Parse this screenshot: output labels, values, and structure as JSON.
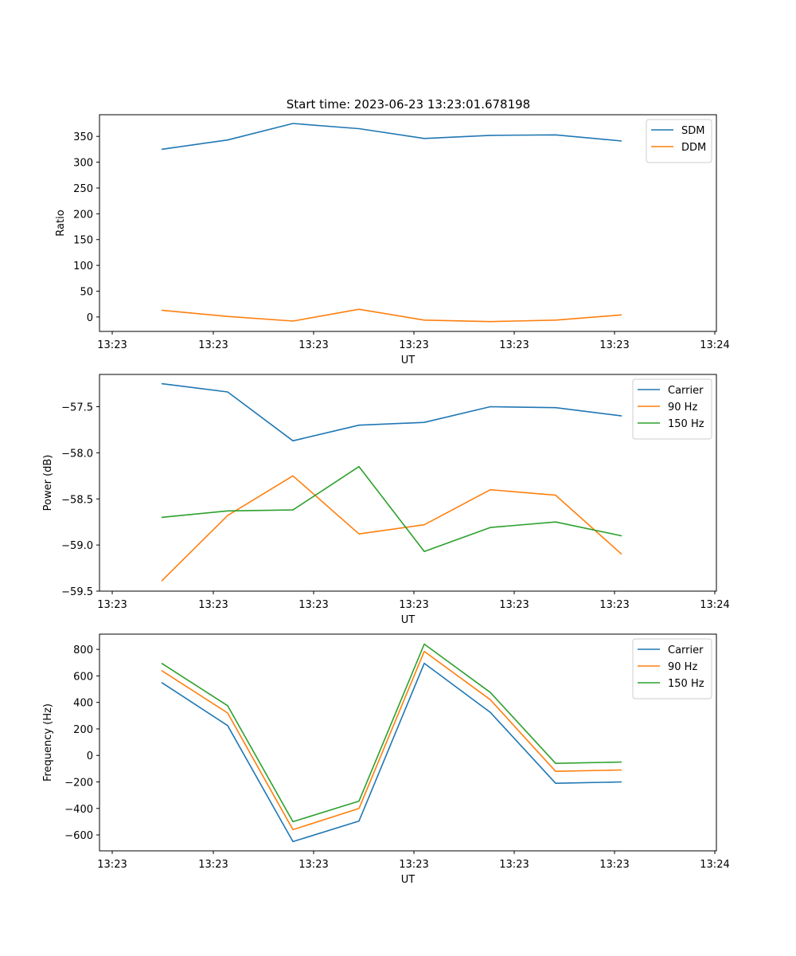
{
  "figure_title": "Start time: 2023-06-23 13:23:01.678198",
  "colors": {
    "blue": "#1f77b4",
    "orange": "#ff7f0e",
    "green": "#2ca02c"
  },
  "chart_data": [
    {
      "type": "line",
      "ylabel": "Ratio",
      "xlabel": "UT",
      "xticks": [
        "13:23",
        "13:23",
        "13:23",
        "13:23",
        "13:23",
        "13:23",
        "13:24"
      ],
      "yticks": [
        0,
        50,
        100,
        150,
        200,
        250,
        300,
        350
      ],
      "ylim": [
        -28,
        392
      ],
      "grid": false,
      "legend": "top-right",
      "series": [
        {
          "name": "SDM",
          "color": "#1f77b4",
          "values": [
            325,
            343,
            375,
            365,
            346,
            352,
            353,
            341
          ]
        },
        {
          "name": "DDM",
          "color": "#ff7f0e",
          "values": [
            13,
            1,
            -8,
            15,
            -6,
            -9,
            -6,
            4
          ]
        }
      ]
    },
    {
      "type": "line",
      "ylabel": "Power (dB)",
      "xlabel": "UT",
      "xticks": [
        "13:23",
        "13:23",
        "13:23",
        "13:23",
        "13:23",
        "13:23",
        "13:24"
      ],
      "yticks": [
        -59.5,
        -59.0,
        -58.5,
        -58.0,
        -57.5
      ],
      "ytick_labels": [
        "−59.5",
        "−59.0",
        "−58.5",
        "−58.0",
        "−57.5"
      ],
      "ylim": [
        -59.5,
        -57.15
      ],
      "grid": false,
      "legend": "top-right",
      "series": [
        {
          "name": "Carrier",
          "color": "#1f77b4",
          "values": [
            -57.25,
            -57.34,
            -57.87,
            -57.7,
            -57.67,
            -57.5,
            -57.51,
            -57.6
          ]
        },
        {
          "name": "90 Hz",
          "color": "#ff7f0e",
          "values": [
            -59.39,
            -58.68,
            -58.25,
            -58.88,
            -58.78,
            -58.4,
            -58.46,
            -59.1
          ]
        },
        {
          "name": "150 Hz",
          "color": "#2ca02c",
          "values": [
            -58.7,
            -58.63,
            -58.62,
            -58.15,
            -59.07,
            -58.81,
            -58.75,
            -58.9
          ]
        }
      ]
    },
    {
      "type": "line",
      "ylabel": "Frequency (Hz)",
      "xlabel": "UT",
      "xticks": [
        "13:23",
        "13:23",
        "13:23",
        "13:23",
        "13:23",
        "13:23",
        "13:24"
      ],
      "yticks": [
        -600,
        -400,
        -200,
        0,
        200,
        400,
        600,
        800
      ],
      "ytick_labels": [
        "−600",
        "−400",
        "−200",
        "0",
        "200",
        "400",
        "600",
        "800"
      ],
      "ylim": [
        -720,
        915
      ],
      "grid": false,
      "legend": "top-right",
      "series": [
        {
          "name": "Carrier",
          "color": "#1f77b4",
          "values": [
            550,
            225,
            -650,
            -495,
            695,
            325,
            -210,
            -200
          ]
        },
        {
          "name": "90 Hz",
          "color": "#ff7f0e",
          "values": [
            640,
            320,
            -560,
            -400,
            785,
            420,
            -120,
            -110
          ]
        },
        {
          "name": "150 Hz",
          "color": "#2ca02c",
          "values": [
            695,
            375,
            -500,
            -345,
            840,
            475,
            -60,
            -50
          ]
        }
      ]
    }
  ]
}
